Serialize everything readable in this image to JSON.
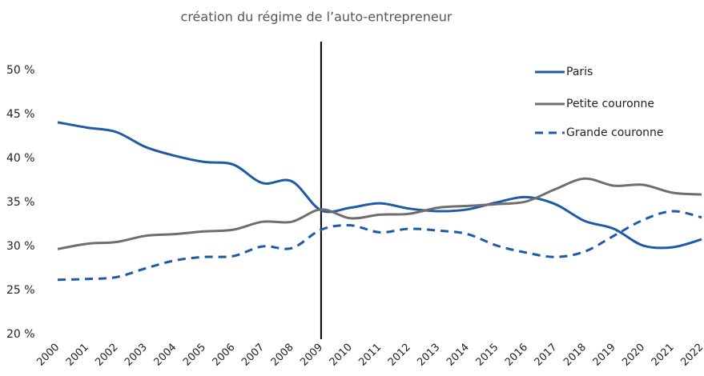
{
  "chart_data": {
    "type": "line",
    "annotation": {
      "text": "création du régime de l’auto-entrepreneur",
      "x": "2009"
    },
    "categories": [
      "2000",
      "2001",
      "2002",
      "2003",
      "2004",
      "2005",
      "2006",
      "2007",
      "2008",
      "2009",
      "2010",
      "2011",
      "2012",
      "2013",
      "2014",
      "2015",
      "2016",
      "2017",
      "2018",
      "2019",
      "2020",
      "2021",
      "2022"
    ],
    "series": [
      {
        "name": "Paris",
        "color": "#1f5aa6",
        "dash": false,
        "values": [
          44.1,
          43.5,
          43.0,
          41.3,
          40.3,
          39.6,
          39.3,
          37.2,
          37.4,
          34.1,
          34.4,
          34.9,
          34.3,
          34.0,
          34.2,
          35.0,
          35.6,
          34.8,
          32.9,
          32.0,
          30.1,
          29.9,
          30.8
        ]
      },
      {
        "name": "Petite couronne",
        "color": "#6e6e6e",
        "dash": false,
        "values": [
          29.7,
          30.3,
          30.5,
          31.2,
          31.4,
          31.7,
          31.9,
          32.8,
          32.8,
          34.2,
          33.2,
          33.6,
          33.7,
          34.4,
          34.6,
          34.8,
          35.1,
          36.5,
          37.7,
          36.9,
          37.0,
          36.1,
          35.9
        ]
      },
      {
        "name": "Grande couronne",
        "color": "#1f5aa6",
        "dash": true,
        "values": [
          26.2,
          26.3,
          26.5,
          27.5,
          28.4,
          28.8,
          28.9,
          30.0,
          29.8,
          31.9,
          32.4,
          31.6,
          32.0,
          31.8,
          31.4,
          30.1,
          29.3,
          28.8,
          29.4,
          31.2,
          33.0,
          34.0,
          33.3
        ]
      }
    ],
    "ylim": [
      20,
      50
    ],
    "yticks": [
      {
        "value": 20,
        "label": "20 %"
      },
      {
        "value": 25,
        "label": "25 %"
      },
      {
        "value": 30,
        "label": "30 %"
      },
      {
        "value": 35,
        "label": "35 %"
      },
      {
        "value": 40,
        "label": "40 %"
      },
      {
        "value": 45,
        "label": "45 %"
      },
      {
        "value": 50,
        "label": "50 %"
      }
    ],
    "grid": false,
    "legend": "upper right"
  }
}
